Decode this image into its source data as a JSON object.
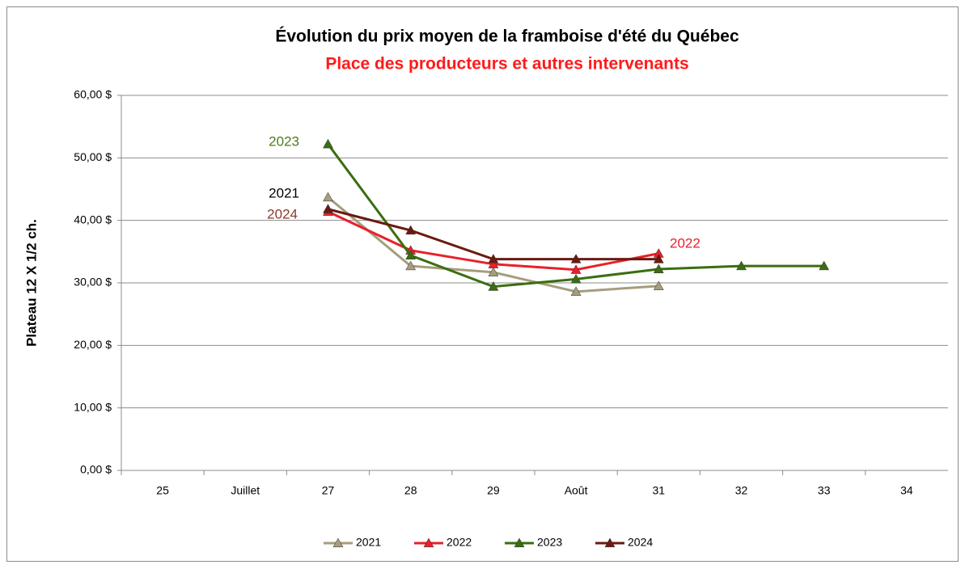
{
  "chart_data": {
    "type": "line",
    "title": "Évolution du prix moyen de la framboise d'été du Québec",
    "subtitle": "Place des producteurs et autres intervenants",
    "y_label": "Plateau 12 X 1/2 ch.",
    "categories": [
      "25",
      "Juillet",
      "27",
      "28",
      "29",
      "Août",
      "31",
      "32",
      "33",
      "34"
    ],
    "series": [
      {
        "name": "2021",
        "color": "#a69d7d",
        "values": [
          null,
          null,
          43.7,
          32.7,
          31.7,
          28.6,
          29.5,
          null,
          null,
          null
        ]
      },
      {
        "name": "2022",
        "color": "#e8202a",
        "values": [
          null,
          null,
          41.4,
          35.2,
          33.0,
          32.1,
          34.7,
          null,
          null,
          null
        ]
      },
      {
        "name": "2023",
        "color": "#3a6e10",
        "values": [
          null,
          null,
          52.2,
          34.4,
          29.4,
          30.6,
          32.2,
          32.7,
          32.7,
          null
        ]
      },
      {
        "name": "2024",
        "color": "#6b1a10",
        "values": [
          null,
          null,
          41.8,
          38.4,
          33.8,
          33.8,
          33.8,
          null,
          null,
          null
        ]
      }
    ],
    "annotations": [
      {
        "text": "2023",
        "color": "#4f7a1e"
      },
      {
        "text": "2021",
        "color": "#000000"
      },
      {
        "text": "2024",
        "color": "#8b3a2a"
      },
      {
        "text": "2022",
        "color": "#e8202a"
      }
    ],
    "ylim": [
      0,
      60
    ],
    "yticks": [
      {
        "value": 0,
        "label": "0,00 $"
      },
      {
        "value": 10,
        "label": "10,00 $"
      },
      {
        "value": 20,
        "label": "20,00 $"
      },
      {
        "value": 30,
        "label": "30,00 $"
      },
      {
        "value": 40,
        "label": "40,00 $"
      },
      {
        "value": 50,
        "label": "50,00 $"
      },
      {
        "value": 60,
        "label": "60,00 $"
      }
    ],
    "grid": true,
    "legend": "bottom"
  }
}
